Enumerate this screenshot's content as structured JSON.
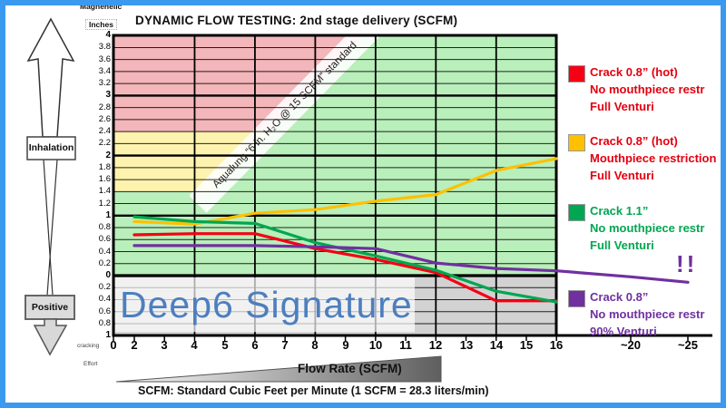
{
  "frame": {
    "border_color": "#3b99f0"
  },
  "title": "DYNAMIC FLOW TESTING:  2nd stage delivery (SCFM)",
  "watermark": "Deep6 Signature",
  "alert": "!!",
  "standard_band_label": "Aqualung “6 in. H₂O @ 15 SCFM” standard",
  "left_gauge": {
    "top_label": "Magnehelic",
    "units_label": "Inches",
    "inhalation_label": "Inhalation",
    "positive_label": "Positive",
    "cracking_label": "cracking",
    "effort_label": "Effort"
  },
  "flow_arrow_label": "Flow Rate  (SCFM)",
  "footnote": "SCFM:  Standard Cubic Feet per Minute  (1 SCFM = 28.3 liters/min)",
  "legend": {
    "items": [
      {
        "color": "#f50014",
        "text_color": "#e3000f",
        "lines": [
          "Crack 0.8” (hot)",
          "No mouthpiece restr",
          "Full Venturi"
        ]
      },
      {
        "color": "#ffc000",
        "text_color": "#e3000f",
        "lines": [
          "Crack 0.8” (hot)",
          "Mouthpiece restriction",
          "Full Venturi"
        ]
      },
      {
        "color": "#00a651",
        "text_color": "#00a651",
        "lines": [
          "Crack 1.1”",
          "No mouthpiece restr",
          "Full Venturi"
        ]
      },
      {
        "color": "#7030a0",
        "text_color": "#7030a0",
        "lines": [
          "Crack 0.8”",
          "No mouthpiece restr",
          "90% Venturi"
        ]
      }
    ]
  },
  "chart_data": {
    "type": "line",
    "title": "DYNAMIC FLOW TESTING: 2nd stage delivery (SCFM)",
    "xlabel": "Flow Rate (SCFM)",
    "ylabel": "Magnehelic Inches",
    "ylim": [
      -1,
      4
    ],
    "grid": true,
    "legend_position": "right",
    "x_ticks": [
      "0",
      "2",
      "3",
      "4",
      "5",
      "6",
      "7",
      "8",
      "9",
      "10",
      "11",
      "12",
      "13",
      "14",
      "15",
      "16",
      "~20",
      "~25"
    ],
    "y_ticks": [
      "4",
      "3.8",
      "3.6",
      "3.4",
      "3.2",
      "3",
      "2.8",
      "2.6",
      "2.4",
      "2.2",
      "2",
      "1.8",
      "1.6",
      "1.4",
      "1.2",
      "1",
      "0.8",
      "0.6",
      "0.4",
      "0.2",
      "0",
      "0.2",
      "0.4",
      "0.6",
      "0.8",
      "1"
    ],
    "series": [
      {
        "name": "Crack 0.8\" (hot), No mouthpiece restr, Full Venturi",
        "color": "#f50014",
        "x": [
          2,
          4,
          6,
          8,
          10,
          12,
          14,
          16
        ],
        "values": [
          0.68,
          0.7,
          0.7,
          0.45,
          0.27,
          0.05,
          -0.42,
          -0.42
        ]
      },
      {
        "name": "Crack 0.8\" (hot), Mouthpiece restriction, Full Venturi",
        "color": "#ffc000",
        "x": [
          2,
          4,
          6,
          8,
          10,
          12,
          14,
          16
        ],
        "values": [
          0.9,
          0.86,
          1.04,
          1.1,
          1.24,
          1.35,
          1.75,
          1.95
        ]
      },
      {
        "name": "Crack 1.1\", No mouthpiece restr, Full Venturi",
        "color": "#00a651",
        "x": [
          2,
          4,
          6,
          8,
          10,
          12,
          14,
          16
        ],
        "values": [
          0.98,
          0.9,
          0.87,
          0.55,
          0.33,
          0.09,
          -0.26,
          -0.44
        ]
      },
      {
        "name": "Crack 0.8\", No mouthpiece restr, 90% Venturi",
        "color": "#7030a0",
        "x": [
          2,
          4,
          6,
          8,
          10,
          12,
          14,
          16,
          "~20",
          "~25"
        ],
        "values": [
          0.5,
          0.5,
          0.5,
          0.48,
          0.45,
          0.21,
          0.12,
          0.08,
          -0.02,
          -0.11
        ]
      }
    ],
    "regions": {
      "pink_above": 2.4,
      "yellow_between": [
        1.4,
        2.4
      ],
      "negative_gray": [
        -1,
        0
      ],
      "diagonal_line_data": [
        [
          4.4,
          1.34
        ],
        [
          9.6,
          4.0
        ]
      ],
      "colors": {
        "pink": "#f3b6ba",
        "yellow": "#fdf3ae",
        "green": "#b9efba",
        "gray": "#d2d2d2"
      }
    }
  }
}
